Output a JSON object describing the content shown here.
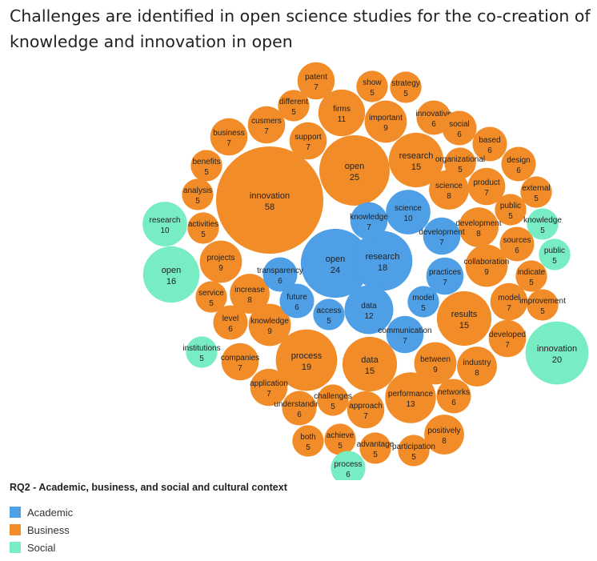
{
  "chart_data": {
    "type": "bubble",
    "title": "Challenges are identified in open science studies for the co-creation of knowledge and innovation in open",
    "legend_title": "RQ2 - Academic, business, and social and cultural context",
    "legend_placement": "bottom-left",
    "categories": [
      {
        "name": "Academic",
        "color": "#4e9fe6"
      },
      {
        "name": "Business",
        "color": "#f28c28"
      },
      {
        "name": "Social",
        "color": "#78ecc3"
      }
    ],
    "bubbles": [
      {
        "label": "innovation",
        "value": 58,
        "category": "Business"
      },
      {
        "label": "open",
        "value": 25,
        "category": "Business"
      },
      {
        "label": "process",
        "value": 19,
        "category": "Business"
      },
      {
        "label": "research",
        "value": 15,
        "category": "Business"
      },
      {
        "label": "data",
        "value": 15,
        "category": "Business"
      },
      {
        "label": "results",
        "value": 15,
        "category": "Business"
      },
      {
        "label": "performance",
        "value": 13,
        "category": "Business"
      },
      {
        "label": "firms",
        "value": 11,
        "category": "Business"
      },
      {
        "label": "projects",
        "value": 9,
        "category": "Business"
      },
      {
        "label": "knowledge",
        "value": 9,
        "category": "Business"
      },
      {
        "label": "important",
        "value": 9,
        "category": "Business"
      },
      {
        "label": "collaboration",
        "value": 9,
        "category": "Business"
      },
      {
        "label": "between",
        "value": 9,
        "category": "Business"
      },
      {
        "label": "increase",
        "value": 8,
        "category": "Business"
      },
      {
        "label": "science",
        "value": 8,
        "category": "Business"
      },
      {
        "label": "development",
        "value": 8,
        "category": "Business"
      },
      {
        "label": "industry",
        "value": 8,
        "category": "Business"
      },
      {
        "label": "positively",
        "value": 8,
        "category": "Business"
      },
      {
        "label": "patent",
        "value": 7,
        "category": "Business"
      },
      {
        "label": "business",
        "value": 7,
        "category": "Business"
      },
      {
        "label": "cusmers",
        "value": 7,
        "category": "Business"
      },
      {
        "label": "support",
        "value": 7,
        "category": "Business"
      },
      {
        "label": "product",
        "value": 7,
        "category": "Business"
      },
      {
        "label": "model",
        "value": 7,
        "category": "Business"
      },
      {
        "label": "developed",
        "value": 7,
        "category": "Business"
      },
      {
        "label": "companies",
        "value": 7,
        "category": "Business"
      },
      {
        "label": "application",
        "value": 7,
        "category": "Business"
      },
      {
        "label": "approach",
        "value": 7,
        "category": "Business"
      },
      {
        "label": "innovative",
        "value": 6,
        "category": "Business"
      },
      {
        "label": "social",
        "value": 6,
        "category": "Business"
      },
      {
        "label": "based",
        "value": 6,
        "category": "Business"
      },
      {
        "label": "design",
        "value": 6,
        "category": "Business"
      },
      {
        "label": "sources",
        "value": 6,
        "category": "Business"
      },
      {
        "label": "level",
        "value": 6,
        "category": "Business"
      },
      {
        "label": "understanding",
        "value": 6,
        "category": "Business"
      },
      {
        "label": "networks",
        "value": 6,
        "category": "Business"
      },
      {
        "label": "show",
        "value": 5,
        "category": "Business"
      },
      {
        "label": "strategy",
        "value": 5,
        "category": "Business"
      },
      {
        "label": "different",
        "value": 5,
        "category": "Business"
      },
      {
        "label": "organizational",
        "value": 5,
        "category": "Business"
      },
      {
        "label": "benefits",
        "value": 5,
        "category": "Business"
      },
      {
        "label": "analysis",
        "value": 5,
        "category": "Business"
      },
      {
        "label": "activities",
        "value": 5,
        "category": "Business"
      },
      {
        "label": "public",
        "value": 5,
        "category": "Business"
      },
      {
        "label": "external",
        "value": 5,
        "category": "Business"
      },
      {
        "label": "indicate",
        "value": 5,
        "category": "Business"
      },
      {
        "label": "improvement",
        "value": 5,
        "category": "Business"
      },
      {
        "label": "service",
        "value": 5,
        "category": "Business"
      },
      {
        "label": "challenges",
        "value": 5,
        "category": "Business"
      },
      {
        "label": "both",
        "value": 5,
        "category": "Business"
      },
      {
        "label": "achieve",
        "value": 5,
        "category": "Business"
      },
      {
        "label": "advantage",
        "value": 5,
        "category": "Business"
      },
      {
        "label": "participation",
        "value": 5,
        "category": "Business"
      },
      {
        "label": "open",
        "value": 24,
        "category": "Academic"
      },
      {
        "label": "research",
        "value": 18,
        "category": "Academic"
      },
      {
        "label": "data",
        "value": 12,
        "category": "Academic"
      },
      {
        "label": "science",
        "value": 10,
        "category": "Academic"
      },
      {
        "label": "knowledge",
        "value": 7,
        "category": "Academic"
      },
      {
        "label": "development",
        "value": 7,
        "category": "Academic"
      },
      {
        "label": "practices",
        "value": 7,
        "category": "Academic"
      },
      {
        "label": "communication",
        "value": 7,
        "category": "Academic"
      },
      {
        "label": "transparency",
        "value": 6,
        "category": "Academic"
      },
      {
        "label": "future",
        "value": 6,
        "category": "Academic"
      },
      {
        "label": "access",
        "value": 5,
        "category": "Academic"
      },
      {
        "label": "model",
        "value": 5,
        "category": "Academic"
      },
      {
        "label": "innovation",
        "value": 20,
        "category": "Social"
      },
      {
        "label": "open",
        "value": 16,
        "category": "Social"
      },
      {
        "label": "research",
        "value": 10,
        "category": "Social"
      },
      {
        "label": "process",
        "value": 6,
        "category": "Social"
      },
      {
        "label": "knowledge",
        "value": 5,
        "category": "Social"
      },
      {
        "label": "public",
        "value": 5,
        "category": "Social"
      },
      {
        "label": "institutions",
        "value": 5,
        "category": "Social"
      }
    ]
  }
}
